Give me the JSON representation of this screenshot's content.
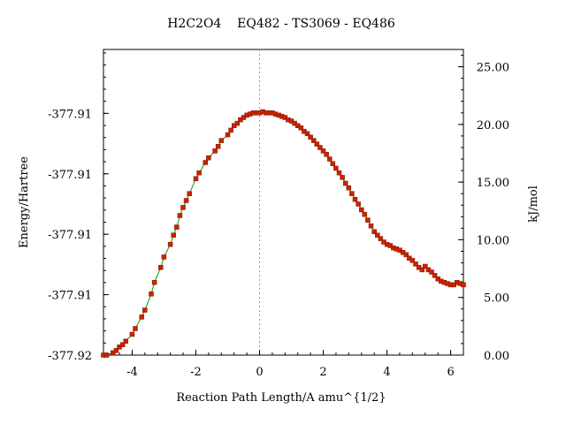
{
  "chart_data": {
    "type": "line",
    "title": "H2C2O4    EQ482 - TS3069 - EQ486",
    "xlabel": "Reaction Path Length/A amu^{1/2}",
    "ylabel_left": "Energy/Hartree",
    "ylabel_right": "kJ/mol",
    "xlim": [
      -4.9,
      6.4
    ],
    "ylim_right": [
      0,
      26.5
    ],
    "x_ticks": [
      -4,
      -2,
      0,
      2,
      4,
      6
    ],
    "x_tick_labels": [
      "-4",
      "-2",
      "0",
      "2",
      "4",
      "6"
    ],
    "y_left_ticks_kj": [
      0,
      5.24,
      10.48,
      15.72,
      20.96
    ],
    "y_left_tick_labels": [
      "-377.92",
      "-377.91",
      "-377.91",
      "-377.91",
      "-377.91"
    ],
    "y_right_ticks": [
      0,
      5,
      10,
      15,
      20,
      25
    ],
    "y_right_tick_labels": [
      "0.00",
      "5.00",
      "10.00",
      "15.00",
      "20.00",
      "25.00"
    ],
    "ts_marker_x": 0,
    "series": [
      {
        "line_color": "#00a000",
        "marker_color": "#cc2200",
        "points": [
          [
            -4.9,
            0.0
          ],
          [
            -4.8,
            0.0
          ],
          [
            -4.6,
            0.2
          ],
          [
            -4.5,
            0.4
          ],
          [
            -4.4,
            0.7
          ],
          [
            -4.3,
            0.9
          ],
          [
            -4.2,
            1.2
          ],
          [
            -4.0,
            1.8
          ],
          [
            -3.9,
            2.3
          ],
          [
            -3.7,
            3.3
          ],
          [
            -3.6,
            3.9
          ],
          [
            -3.4,
            5.3
          ],
          [
            -3.3,
            6.3
          ],
          [
            -3.1,
            7.6
          ],
          [
            -3.0,
            8.5
          ],
          [
            -2.8,
            9.6
          ],
          [
            -2.7,
            10.4
          ],
          [
            -2.6,
            11.1
          ],
          [
            -2.5,
            12.1
          ],
          [
            -2.4,
            12.8
          ],
          [
            -2.3,
            13.4
          ],
          [
            -2.2,
            14.0
          ],
          [
            -2.0,
            15.3
          ],
          [
            -1.9,
            15.8
          ],
          [
            -1.7,
            16.7
          ],
          [
            -1.6,
            17.1
          ],
          [
            -1.4,
            17.7
          ],
          [
            -1.3,
            18.1
          ],
          [
            -1.2,
            18.6
          ],
          [
            -1.0,
            19.1
          ],
          [
            -0.9,
            19.5
          ],
          [
            -0.8,
            19.9
          ],
          [
            -0.7,
            20.1
          ],
          [
            -0.6,
            20.4
          ],
          [
            -0.5,
            20.6
          ],
          [
            -0.4,
            20.8
          ],
          [
            -0.3,
            20.9
          ],
          [
            -0.2,
            21.0
          ],
          [
            -0.1,
            21.0
          ],
          [
            0.0,
            21.0
          ],
          [
            0.1,
            21.1
          ],
          [
            0.2,
            21.0
          ],
          [
            0.3,
            21.0
          ],
          [
            0.4,
            21.0
          ],
          [
            0.5,
            20.9
          ],
          [
            0.6,
            20.8
          ],
          [
            0.7,
            20.7
          ],
          [
            0.8,
            20.6
          ],
          [
            0.9,
            20.4
          ],
          [
            1.0,
            20.3
          ],
          [
            1.1,
            20.1
          ],
          [
            1.2,
            19.9
          ],
          [
            1.3,
            19.7
          ],
          [
            1.4,
            19.4
          ],
          [
            1.5,
            19.2
          ],
          [
            1.6,
            18.9
          ],
          [
            1.7,
            18.6
          ],
          [
            1.8,
            18.3
          ],
          [
            1.9,
            18.0
          ],
          [
            2.0,
            17.7
          ],
          [
            2.1,
            17.4
          ],
          [
            2.2,
            17.0
          ],
          [
            2.3,
            16.6
          ],
          [
            2.4,
            16.2
          ],
          [
            2.5,
            15.8
          ],
          [
            2.6,
            15.4
          ],
          [
            2.7,
            14.9
          ],
          [
            2.8,
            14.5
          ],
          [
            2.9,
            14.0
          ],
          [
            3.0,
            13.5
          ],
          [
            3.1,
            13.1
          ],
          [
            3.2,
            12.6
          ],
          [
            3.3,
            12.2
          ],
          [
            3.4,
            11.7
          ],
          [
            3.5,
            11.2
          ],
          [
            3.6,
            10.7
          ],
          [
            3.7,
            10.4
          ],
          [
            3.8,
            10.1
          ],
          [
            3.9,
            9.8
          ],
          [
            4.0,
            9.6
          ],
          [
            4.1,
            9.5
          ],
          [
            4.2,
            9.3
          ],
          [
            4.3,
            9.2
          ],
          [
            4.4,
            9.1
          ],
          [
            4.5,
            8.9
          ],
          [
            4.6,
            8.7
          ],
          [
            4.7,
            8.4
          ],
          [
            4.8,
            8.2
          ],
          [
            4.9,
            7.9
          ],
          [
            5.0,
            7.6
          ],
          [
            5.1,
            7.4
          ],
          [
            5.2,
            7.7
          ],
          [
            5.3,
            7.4
          ],
          [
            5.4,
            7.2
          ],
          [
            5.5,
            6.9
          ],
          [
            5.6,
            6.6
          ],
          [
            5.7,
            6.4
          ],
          [
            5.8,
            6.3
          ],
          [
            5.9,
            6.2
          ],
          [
            6.0,
            6.1
          ],
          [
            6.1,
            6.1
          ],
          [
            6.2,
            6.3
          ],
          [
            6.3,
            6.2
          ],
          [
            6.4,
            6.1
          ]
        ]
      }
    ]
  }
}
